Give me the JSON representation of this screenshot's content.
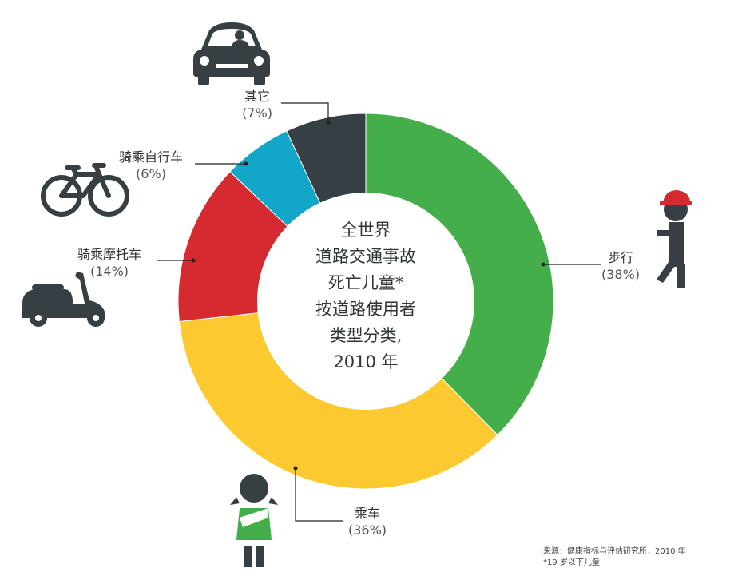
{
  "chart_data": {
    "type": "pie",
    "title_lines": [
      "全世界",
      "道路交通事故",
      "死亡儿童*",
      "按道路使用者",
      "类型分类,",
      "2010 年"
    ],
    "slices": [
      {
        "label": "步行",
        "pct_text": "(38%)",
        "value": 38,
        "color": "#44ae4b",
        "icon": "pedestrian-icon"
      },
      {
        "label": "乘车",
        "pct_text": "(36%)",
        "value": 36,
        "color": "#fcc930",
        "icon": "child-passenger-icon"
      },
      {
        "label": "骑乘摩托车",
        "pct_text": "(14%)",
        "value": 14,
        "color": "#d42a30",
        "icon": "scooter-icon"
      },
      {
        "label": "骑乘自行车",
        "pct_text": "(6%)",
        "value": 6,
        "color": "#12a7c9",
        "icon": "bicycle-icon"
      },
      {
        "label": "其它",
        "pct_text": "(7%)",
        "value": 7,
        "color": "#363f43",
        "icon": "car-icon"
      }
    ]
  },
  "source": {
    "line1": "来源：健康指标与评估研究所，2010 年",
    "line2": "*19 岁以下儿童"
  },
  "colors": {
    "leader": "#222222",
    "icon_dark": "#363f43",
    "cap_red": "#d42a30",
    "vest_green": "#44ae4b"
  }
}
